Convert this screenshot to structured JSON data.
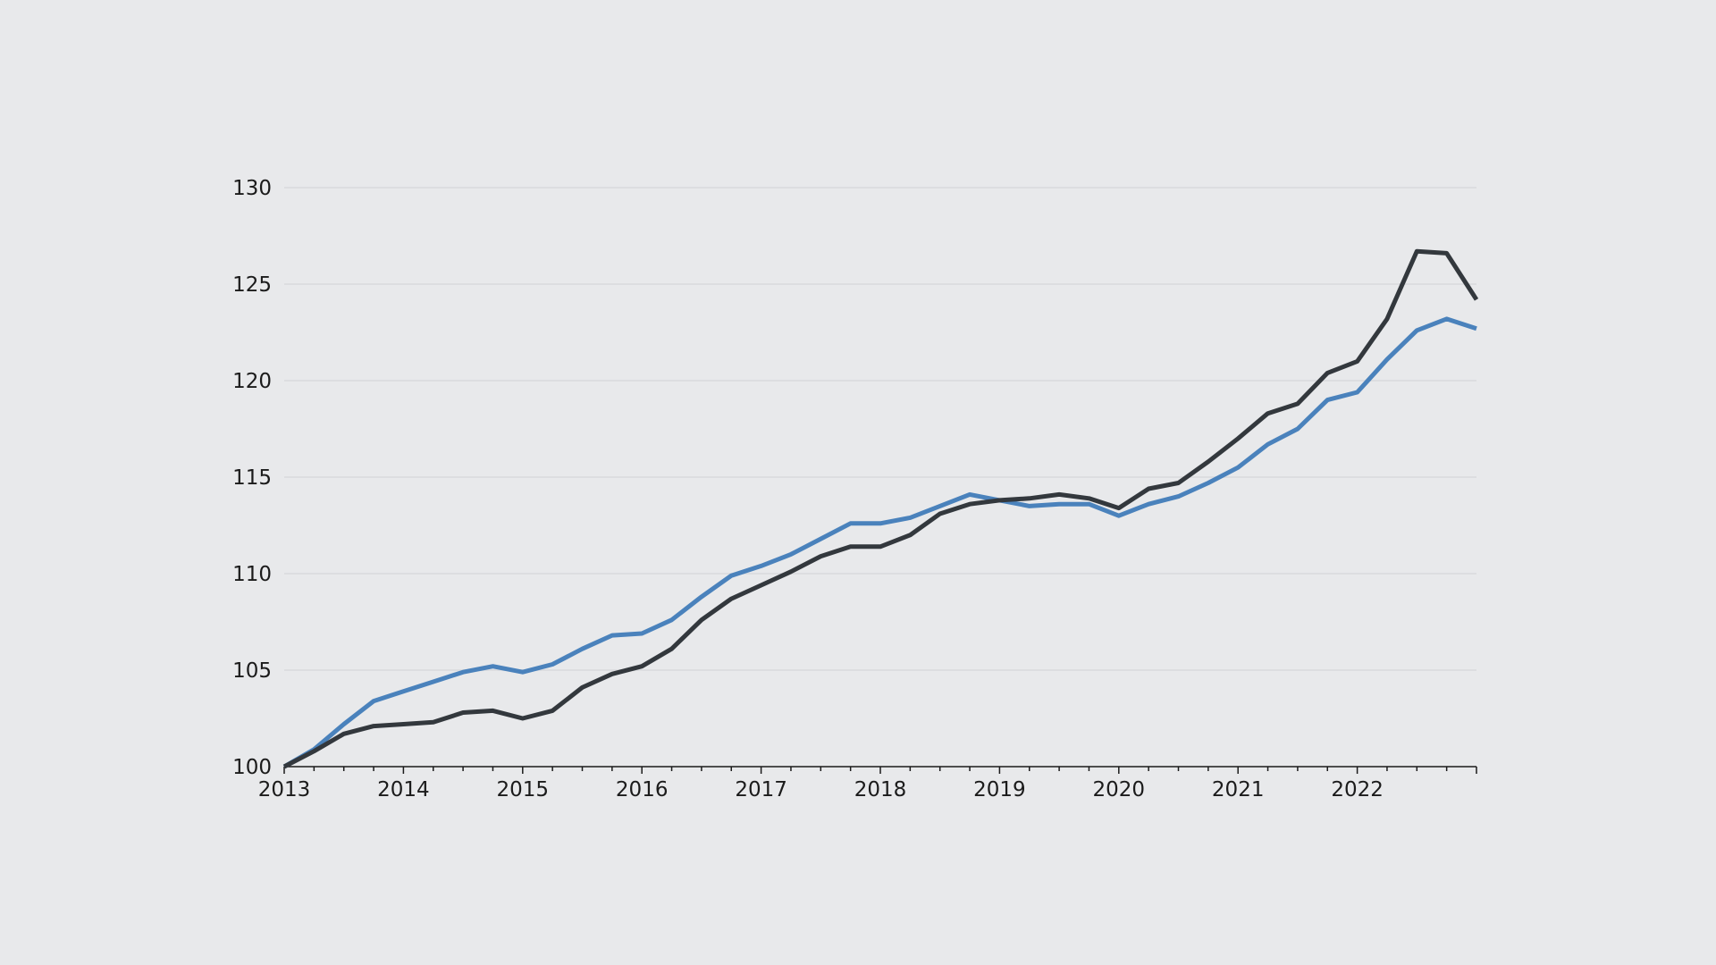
{
  "chart_data": {
    "type": "line",
    "title": "",
    "xlabel": "",
    "ylabel": "",
    "xlim": [
      2013,
      2023
    ],
    "ylim": [
      100,
      130
    ],
    "x_ticks": [
      "2013",
      "2014",
      "2015",
      "2016",
      "2017",
      "2018",
      "2019",
      "2020",
      "2021",
      "2022"
    ],
    "y_ticks": [
      "100",
      "105",
      "110",
      "115",
      "120",
      "125",
      "130"
    ],
    "grid": "horizontal",
    "colors": [
      "#4a82bc",
      "#33383d"
    ],
    "x": [
      2013.0,
      2013.25,
      2013.5,
      2013.75,
      2014.0,
      2014.25,
      2014.5,
      2014.75,
      2015.0,
      2015.25,
      2015.5,
      2015.75,
      2016.0,
      2016.25,
      2016.5,
      2016.75,
      2017.0,
      2017.25,
      2017.5,
      2017.75,
      2018.0,
      2018.25,
      2018.5,
      2018.75,
      2019.0,
      2019.25,
      2019.5,
      2019.75,
      2020.0,
      2020.25,
      2020.5,
      2020.75,
      2021.0,
      2021.25,
      2021.5,
      2021.75,
      2022.0,
      2022.25,
      2022.5,
      2022.75,
      2023.0
    ],
    "series": [
      {
        "values": [
          100.0,
          100.9,
          102.2,
          103.4,
          103.9,
          104.4,
          104.9,
          105.2,
          104.9,
          105.3,
          106.1,
          106.8,
          106.9,
          107.6,
          108.8,
          109.9,
          110.4,
          111.0,
          111.8,
          112.6,
          112.6,
          112.9,
          113.5,
          114.1,
          113.8,
          113.5,
          113.6,
          113.6,
          113.0,
          113.6,
          114.0,
          114.7,
          115.5,
          116.7,
          117.5,
          119.0,
          119.4,
          121.1,
          122.6,
          123.2,
          122.7
        ]
      },
      {
        "values": [
          100.0,
          100.8,
          101.7,
          102.1,
          102.2,
          102.3,
          102.8,
          102.9,
          102.5,
          102.9,
          104.1,
          104.8,
          105.2,
          106.1,
          107.6,
          108.7,
          109.4,
          110.1,
          110.9,
          111.4,
          111.4,
          112.0,
          113.1,
          113.6,
          113.8,
          113.9,
          114.1,
          113.9,
          113.4,
          114.4,
          114.7,
          115.8,
          117.0,
          118.3,
          118.8,
          120.4,
          121.0,
          123.2,
          126.7,
          126.6,
          124.2
        ]
      }
    ]
  }
}
